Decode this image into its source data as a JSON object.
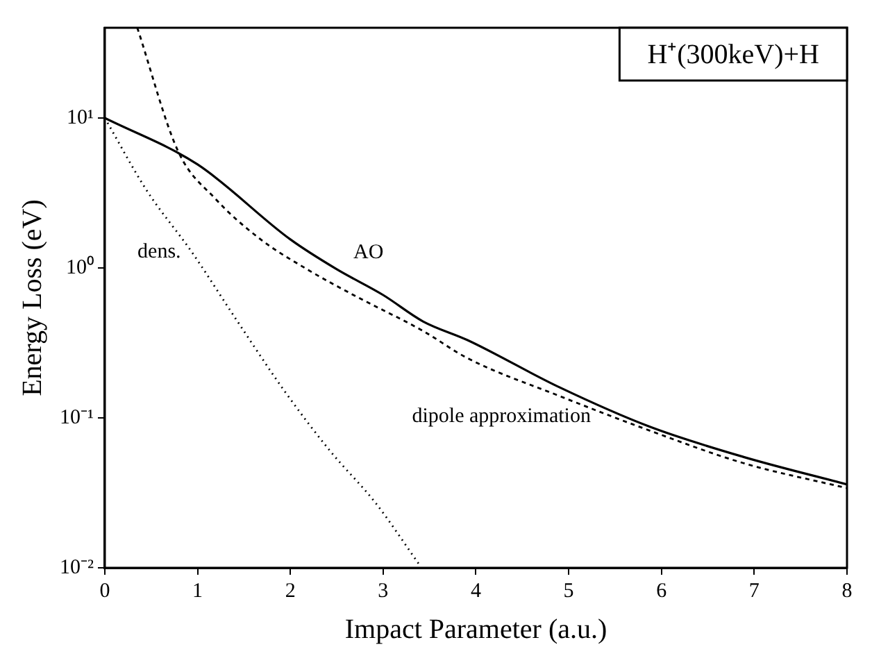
{
  "chart_data": {
    "type": "line",
    "xlabel": "Impact Parameter (a.u.)",
    "ylabel": "Energy Loss (eV)",
    "annotations": [
      "H⁺(300keV)+H"
    ],
    "log": "y",
    "grid": false,
    "legend": false,
    "marker": "none",
    "xlim": [
      0,
      8
    ],
    "xticks": [
      0,
      1,
      2,
      3,
      4,
      5,
      6,
      7,
      8
    ],
    "ylim": [
      0.01,
      40
    ],
    "yticks": [
      {
        "value": 0.01,
        "label": "10⁻²"
      },
      {
        "value": 0.1,
        "label": "10⁻¹"
      },
      {
        "value": 1,
        "label": "10⁰"
      },
      {
        "value": 10,
        "label": "10¹"
      }
    ],
    "series": [
      {
        "name": "AO",
        "color": "#000000",
        "line_style": "solid",
        "x": [
          0,
          1,
          2,
          2.5,
          3,
          3.43,
          3.91,
          4.9,
          5.88,
          6.88,
          8
        ],
        "values": [
          10,
          4.9,
          1.55,
          0.98,
          0.66,
          0.44,
          0.33,
          0.16,
          0.087,
          0.055,
          0.036
        ]
      },
      {
        "name": "dipole approximation",
        "color": "#000000",
        "line_style": "dashed",
        "x": [
          0.35,
          0.79,
          1.19,
          1.68,
          2.18,
          2.68,
          3.43,
          3.91,
          4.9,
          5.88,
          6.88,
          8
        ],
        "values": [
          40,
          6,
          2.9,
          1.55,
          0.98,
          0.66,
          0.38,
          0.25,
          0.14,
          0.082,
          0.05,
          0.034
        ]
      },
      {
        "name": "dens.",
        "color": "#000000",
        "line_style": "dotted",
        "x": [
          0,
          0.45,
          0.94,
          1.43,
          1.94,
          2.43,
          2.92,
          3.39
        ],
        "values": [
          10,
          3.3,
          1.27,
          0.44,
          0.15,
          0.06,
          0.027,
          0.0105
        ]
      }
    ]
  }
}
